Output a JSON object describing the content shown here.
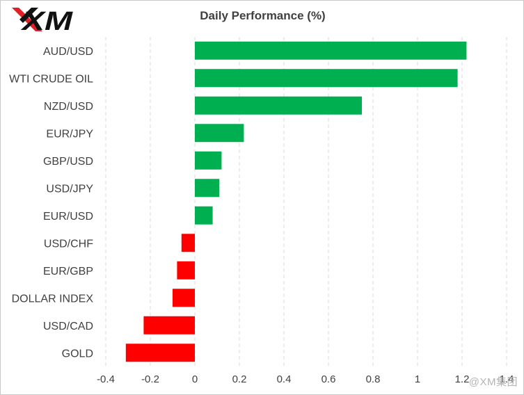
{
  "logo_text": "XM",
  "watermark": "@XM集团",
  "colors": {
    "positive": "#00b050",
    "negative": "#ff0000",
    "grid": "#d9d9d9",
    "text": "#404040"
  },
  "chart_data": {
    "type": "bar",
    "orientation": "horizontal",
    "title": "Daily Performance (%)",
    "xlabel": "",
    "ylabel": "",
    "categories": [
      "AUD/USD",
      "WTI CRUDE OIL",
      "NZD/USD",
      "EUR/JPY",
      "GBP/USD",
      "USD/JPY",
      "EUR/USD",
      "USD/CHF",
      "EUR/GBP",
      "DOLLAR INDEX",
      "USD/CAD",
      "GOLD"
    ],
    "values": [
      1.22,
      1.18,
      0.75,
      0.22,
      0.12,
      0.11,
      0.08,
      -0.06,
      -0.08,
      -0.1,
      -0.23,
      -0.31
    ],
    "xlim": [
      -0.4,
      1.4
    ],
    "xticks": [
      "-0.4",
      "-0.2",
      "0",
      "0.2",
      "0.4",
      "0.6",
      "0.8",
      "1",
      "1.2",
      "1.4"
    ],
    "grid": "vertical dashed",
    "legend": "none"
  }
}
